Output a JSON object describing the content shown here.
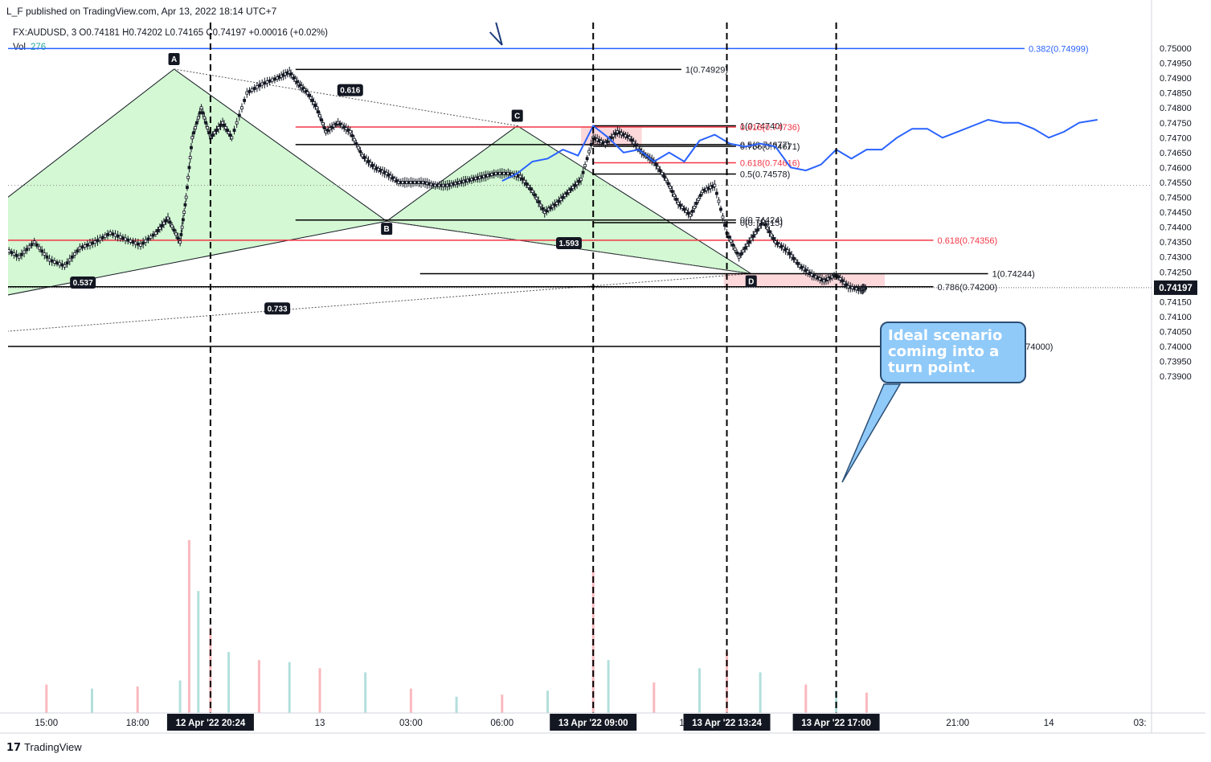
{
  "header": {
    "publish_line": "L_F published on TradingView.com, Apr 13, 2022 18:14 UTC+7",
    "symbol_line": "FX:AUDUSD, 3  O0.74181  H0.74202  L0.74165  C0.74197  +0.00016 (+0.02%)",
    "vol_label": "Vol",
    "vol_value": "276"
  },
  "callout": {
    "text": "Ideal scenario coming into a turn point."
  },
  "footer": {
    "brand": "TradingView",
    "logo": "17"
  },
  "chart_data": {
    "type": "line",
    "title": "",
    "xlabel": "",
    "ylabel": "",
    "ylim": [
      0.7387,
      0.7506
    ],
    "price_ticks": [
      "0.75000",
      "0.74950",
      "0.74900",
      "0.74850",
      "0.74800",
      "0.74750",
      "0.74700",
      "0.74650",
      "0.74600",
      "0.74550",
      "0.74500",
      "0.74450",
      "0.74400",
      "0.74350",
      "0.74300",
      "0.74250",
      "0.74200",
      "0.74150",
      "0.74100",
      "0.74050",
      "0.74000",
      "0.73950",
      "0.73900"
    ],
    "current_price": "0.74197",
    "time_labels": [
      "15:00",
      "18:00",
      "13",
      "03:00",
      "06:00",
      "12",
      "16:00",
      "21:00",
      "14",
      "03:"
    ],
    "time_label_hours": [
      -9,
      -6,
      0,
      3,
      6,
      12,
      16,
      21,
      24,
      27
    ],
    "highlighted_times": [
      {
        "label": "12 Apr '22  20:24",
        "hour": -3.6
      },
      {
        "label": "13 Apr '22  09:00",
        "hour": 9
      },
      {
        "label": "13 Apr '22  13:24",
        "hour": 13.4
      },
      {
        "label": "13 Apr '22  17:00",
        "hour": 17
      }
    ],
    "price_path": [
      {
        "t": -10.4,
        "p": 0.7433
      },
      {
        "t": -9.9,
        "p": 0.743
      },
      {
        "t": -9.4,
        "p": 0.7435
      },
      {
        "t": -8.9,
        "p": 0.7429
      },
      {
        "t": -8.4,
        "p": 0.7427
      },
      {
        "t": -7.9,
        "p": 0.7433
      },
      {
        "t": -7.4,
        "p": 0.7435
      },
      {
        "t": -6.9,
        "p": 0.7438
      },
      {
        "t": -6.4,
        "p": 0.7436
      },
      {
        "t": -5.9,
        "p": 0.7434
      },
      {
        "t": -5.4,
        "p": 0.7438
      },
      {
        "t": -5.0,
        "p": 0.7443
      },
      {
        "t": -4.6,
        "p": 0.7435
      },
      {
        "t": -4.4,
        "p": 0.745
      },
      {
        "t": -4.2,
        "p": 0.747
      },
      {
        "t": -3.9,
        "p": 0.748
      },
      {
        "t": -3.6,
        "p": 0.747
      },
      {
        "t": -3.2,
        "p": 0.7475
      },
      {
        "t": -2.9,
        "p": 0.747
      },
      {
        "t": -2.4,
        "p": 0.7485
      },
      {
        "t": -1.9,
        "p": 0.7488
      },
      {
        "t": -1.4,
        "p": 0.749
      },
      {
        "t": -1.0,
        "p": 0.7492
      },
      {
        "t": -0.7,
        "p": 0.7488
      },
      {
        "t": -0.4,
        "p": 0.7485
      },
      {
        "t": -0.1,
        "p": 0.748
      },
      {
        "t": 0.2,
        "p": 0.7472
      },
      {
        "t": 0.6,
        "p": 0.7475
      },
      {
        "t": 1.0,
        "p": 0.7472
      },
      {
        "t": 1.4,
        "p": 0.7464
      },
      {
        "t": 1.8,
        "p": 0.746
      },
      {
        "t": 2.2,
        "p": 0.7458
      },
      {
        "t": 2.6,
        "p": 0.7455
      },
      {
        "t": 3.0,
        "p": 0.7455
      },
      {
        "t": 3.4,
        "p": 0.7455
      },
      {
        "t": 3.8,
        "p": 0.7454
      },
      {
        "t": 4.2,
        "p": 0.7454
      },
      {
        "t": 4.6,
        "p": 0.7455
      },
      {
        "t": 5.0,
        "p": 0.7456
      },
      {
        "t": 5.4,
        "p": 0.7457
      },
      {
        "t": 5.8,
        "p": 0.7458
      },
      {
        "t": 6.2,
        "p": 0.7458
      },
      {
        "t": 6.6,
        "p": 0.7457
      },
      {
        "t": 7.0,
        "p": 0.7452
      },
      {
        "t": 7.4,
        "p": 0.7445
      },
      {
        "t": 7.8,
        "p": 0.7448
      },
      {
        "t": 8.2,
        "p": 0.7452
      },
      {
        "t": 8.6,
        "p": 0.7456
      },
      {
        "t": 9.0,
        "p": 0.747
      },
      {
        "t": 9.4,
        "p": 0.7468
      },
      {
        "t": 9.8,
        "p": 0.7472
      },
      {
        "t": 10.2,
        "p": 0.747
      },
      {
        "t": 10.6,
        "p": 0.7465
      },
      {
        "t": 11.0,
        "p": 0.7462
      },
      {
        "t": 11.4,
        "p": 0.7456
      },
      {
        "t": 11.8,
        "p": 0.7448
      },
      {
        "t": 12.2,
        "p": 0.7444
      },
      {
        "t": 12.6,
        "p": 0.7452
      },
      {
        "t": 13.0,
        "p": 0.7454
      },
      {
        "t": 13.4,
        "p": 0.7438
      },
      {
        "t": 13.8,
        "p": 0.743
      },
      {
        "t": 14.2,
        "p": 0.7436
      },
      {
        "t": 14.6,
        "p": 0.7442
      },
      {
        "t": 15.0,
        "p": 0.7435
      },
      {
        "t": 15.4,
        "p": 0.7432
      },
      {
        "t": 15.8,
        "p": 0.7427
      },
      {
        "t": 16.2,
        "p": 0.7424
      },
      {
        "t": 16.6,
        "p": 0.7422
      },
      {
        "t": 17.0,
        "p": 0.7424
      },
      {
        "t": 17.4,
        "p": 0.742
      },
      {
        "t": 17.8,
        "p": 0.7419
      },
      {
        "t": 18.0,
        "p": 0.74197
      }
    ],
    "projection_path": [
      {
        "t": 6.0,
        "p": 0.74555
      },
      {
        "t": 6.5,
        "p": 0.7458
      },
      {
        "t": 7.0,
        "p": 0.7462
      },
      {
        "t": 7.5,
        "p": 0.7463
      },
      {
        "t": 8.0,
        "p": 0.7466
      },
      {
        "t": 8.5,
        "p": 0.7464
      },
      {
        "t": 9.0,
        "p": 0.7474
      },
      {
        "t": 9.5,
        "p": 0.747
      },
      {
        "t": 10.0,
        "p": 0.7465
      },
      {
        "t": 10.5,
        "p": 0.7466
      },
      {
        "t": 11.0,
        "p": 0.7462
      },
      {
        "t": 11.5,
        "p": 0.7465
      },
      {
        "t": 12.0,
        "p": 0.7462
      },
      {
        "t": 12.5,
        "p": 0.7469
      },
      {
        "t": 13.0,
        "p": 0.7471
      },
      {
        "t": 13.5,
        "p": 0.7468
      },
      {
        "t": 14.0,
        "p": 0.7467
      },
      {
        "t": 14.5,
        "p": 0.7468
      },
      {
        "t": 15.0,
        "p": 0.7467
      },
      {
        "t": 15.5,
        "p": 0.746
      },
      {
        "t": 16.0,
        "p": 0.7459
      },
      {
        "t": 16.5,
        "p": 0.7461
      },
      {
        "t": 17.0,
        "p": 0.7466
      },
      {
        "t": 17.5,
        "p": 0.7463
      },
      {
        "t": 18.0,
        "p": 0.7466
      },
      {
        "t": 18.5,
        "p": 0.7466
      },
      {
        "t": 19.0,
        "p": 0.747
      },
      {
        "t": 19.5,
        "p": 0.7473
      },
      {
        "t": 20.0,
        "p": 0.7473
      },
      {
        "t": 20.5,
        "p": 0.747
      },
      {
        "t": 21.0,
        "p": 0.7472
      },
      {
        "t": 21.5,
        "p": 0.7474
      },
      {
        "t": 22.0,
        "p": 0.7476
      },
      {
        "t": 22.5,
        "p": 0.7475
      },
      {
        "t": 23.0,
        "p": 0.7475
      },
      {
        "t": 23.5,
        "p": 0.7473
      },
      {
        "t": 24.0,
        "p": 0.747
      },
      {
        "t": 24.5,
        "p": 0.7472
      },
      {
        "t": 25.0,
        "p": 0.7475
      },
      {
        "t": 25.6,
        "p": 0.7476
      }
    ],
    "fib_levels": [
      {
        "label": "1(0.74929)",
        "price": 0.74929,
        "t0": -0.8,
        "t1": 11.9,
        "color": "#000000"
      },
      {
        "label": "1(0.74740)",
        "price": 0.7474,
        "t0": 9.0,
        "t1": 13.7,
        "color": "#000000"
      },
      {
        "label": "0.618(0.74736)",
        "price": 0.74736,
        "t0": -0.8,
        "t1": 13.7,
        "color": "#f23645"
      },
      {
        "label": "0.5(0.74677)",
        "price": 0.74677,
        "t0": -0.8,
        "t1": 13.7,
        "color": "#000000"
      },
      {
        "label": "0.786(0.74671)",
        "price": 0.74671,
        "t0": 9.0,
        "t1": 13.7,
        "color": "#000000"
      },
      {
        "label": "0.618(0.74616)",
        "price": 0.74616,
        "t0": 9.0,
        "t1": 13.7,
        "color": "#f23645"
      },
      {
        "label": "0.5(0.74578)",
        "price": 0.74578,
        "t0": 9.0,
        "t1": 13.7,
        "color": "#000000"
      },
      {
        "label": "0(0.74424)",
        "price": 0.74424,
        "t0": -0.8,
        "t1": 13.7,
        "color": "#000000"
      },
      {
        "label": "0(0.74415)",
        "price": 0.74415,
        "t0": 9.0,
        "t1": 13.7,
        "color": "#000000"
      },
      {
        "label": "0.618(0.74356)",
        "price": 0.74356,
        "t0": -10.4,
        "t1": 20.2,
        "color": "#f23645"
      },
      {
        "label": "1(0.74244)",
        "price": 0.74244,
        "t0": 3.3,
        "t1": 22.0,
        "color": "#000000"
      },
      {
        "label": "0.786(0.74200)",
        "price": 0.742,
        "t0": -10.4,
        "t1": 20.2,
        "color": "#000000"
      },
      {
        "label": "0(0.74000)",
        "price": 0.74,
        "t0": -10.4,
        "t1": 22.6,
        "color": "#000000"
      },
      {
        "label": "0.382(0.74999)",
        "price": 0.74999,
        "t0": -10.4,
        "t1": 23.2,
        "color": "#2962ff"
      }
    ],
    "pattern_points": [
      {
        "label": "A",
        "t": -4.8,
        "p": 0.7493
      },
      {
        "label": "B",
        "t": 2.2,
        "p": 0.7442
      },
      {
        "label": "C",
        "t": 6.5,
        "p": 0.7474
      },
      {
        "label": "D",
        "t": 14.2,
        "p": 0.74244
      }
    ],
    "ratio_labels": [
      {
        "label": "0.616",
        "t": 1.0,
        "p": 0.74858
      },
      {
        "label": "1.593",
        "t": 8.2,
        "p": 0.74345
      },
      {
        "label": "0.537",
        "t": -7.8,
        "p": 0.74213
      },
      {
        "label": "0.733",
        "t": -1.4,
        "p": 0.74126
      }
    ],
    "zones": [
      {
        "t0": 8.6,
        "t1": 10.6,
        "p0": 0.74672,
        "p1": 0.74738
      },
      {
        "t0": 13.3,
        "t1": 18.6,
        "p0": 0.742,
        "p1": 0.74244
      }
    ],
    "volume_max": 850,
    "volume": [
      {
        "t": -10.4,
        "v": 180
      },
      {
        "t": -9.0,
        "v": 140
      },
      {
        "t": -7.5,
        "v": 120
      },
      {
        "t": -6.0,
        "v": 130
      },
      {
        "t": -4.6,
        "v": 160
      },
      {
        "t": -4.3,
        "v": 850
      },
      {
        "t": -4.0,
        "v": 600
      },
      {
        "t": -3.6,
        "v": 420
      },
      {
        "t": -3.0,
        "v": 300
      },
      {
        "t": -2.0,
        "v": 260
      },
      {
        "t": -1.0,
        "v": 250
      },
      {
        "t": 0.0,
        "v": 220
      },
      {
        "t": 1.5,
        "v": 200
      },
      {
        "t": 3.0,
        "v": 120
      },
      {
        "t": 4.5,
        "v": 80
      },
      {
        "t": 6.0,
        "v": 90
      },
      {
        "t": 7.5,
        "v": 110
      },
      {
        "t": 9.0,
        "v": 700
      },
      {
        "t": 9.5,
        "v": 260
      },
      {
        "t": 11.0,
        "v": 150
      },
      {
        "t": 12.5,
        "v": 220
      },
      {
        "t": 13.4,
        "v": 300
      },
      {
        "t": 14.5,
        "v": 200
      },
      {
        "t": 16.0,
        "v": 140
      },
      {
        "t": 17.0,
        "v": 110
      },
      {
        "t": 18.0,
        "v": 100
      }
    ]
  }
}
